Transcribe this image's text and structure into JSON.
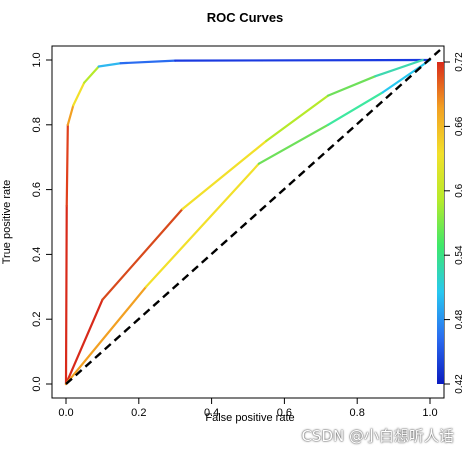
{
  "chart_data": {
    "type": "line",
    "title": "ROC Curves",
    "xlabel": "False positive rate",
    "ylabel": "True positive rate",
    "xlim": [
      0,
      1
    ],
    "ylim": [
      0,
      1
    ],
    "xticks": [
      "0.0",
      "0.2",
      "0.4",
      "0.6",
      "0.8",
      "1.0"
    ],
    "yticks": [
      "0.0",
      "0.2",
      "0.4",
      "0.6",
      "0.8",
      "1.0"
    ],
    "grid": false,
    "diagonal": [
      [
        0,
        0
      ],
      [
        1,
        1
      ]
    ],
    "colorbar": {
      "min": 0.42,
      "max": 0.72,
      "ticks": [
        "0.42",
        "0.48",
        "0.54",
        "0.6",
        "0.66",
        "0.72"
      ],
      "colors": [
        "#0b1bbf",
        "#2a6cf0",
        "#28c8f0",
        "#3ee86a",
        "#b6ea2a",
        "#f2e02a",
        "#f2a022",
        "#d82a1a"
      ]
    },
    "series": [
      {
        "points": [
          [
            0,
            0
          ],
          [
            0.002,
            0.55
          ],
          [
            0.005,
            0.8
          ],
          [
            0.02,
            0.86
          ],
          [
            0.05,
            0.93
          ],
          [
            0.09,
            0.98
          ],
          [
            0.15,
            0.99
          ],
          [
            0.3,
            0.998
          ],
          [
            1.0,
            1.0
          ]
        ],
        "colors": [
          "#d82a1a",
          "#e0401c",
          "#f2a022",
          "#f2e02a",
          "#b6ea2a",
          "#2fb8f0",
          "#2a6cf0",
          "#1a3ae0",
          "#0b1bbf"
        ]
      },
      {
        "points": [
          [
            0,
            0
          ],
          [
            0.1,
            0.26
          ],
          [
            0.32,
            0.54
          ],
          [
            0.55,
            0.75
          ],
          [
            0.72,
            0.89
          ],
          [
            0.85,
            0.95
          ],
          [
            0.98,
            1.0
          ]
        ],
        "colors": [
          "#d82a1a",
          "#d84a1c",
          "#f2e02a",
          "#b6ea2a",
          "#6ee05a",
          "#3ed8b0",
          "#2a6cf0"
        ]
      },
      {
        "points": [
          [
            0,
            0
          ],
          [
            0.22,
            0.3
          ],
          [
            0.53,
            0.68
          ],
          [
            0.72,
            0.8
          ],
          [
            0.87,
            0.9
          ],
          [
            1.0,
            1.0
          ]
        ],
        "colors": [
          "#f2a022",
          "#f2e02a",
          "#6ee05a",
          "#3ee8a0",
          "#28c8f0",
          "#2a6cf0"
        ]
      }
    ]
  },
  "watermark": "CSDN @小白想听人话"
}
